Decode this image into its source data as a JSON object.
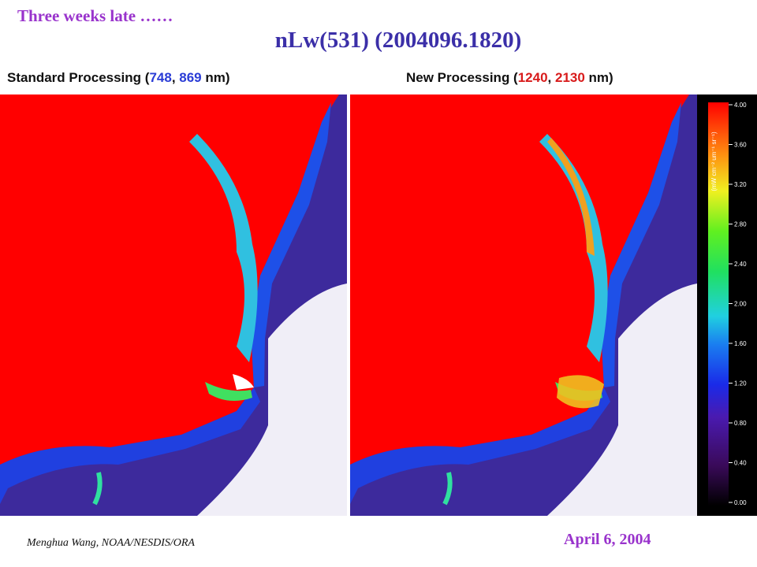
{
  "header": {
    "kicker": "Three weeks late ……",
    "title": "nLw(531) (2004096.1820)"
  },
  "panels": [
    {
      "label_parts": [
        "Standard Processing (",
        "748",
        ", ",
        "869",
        " nm)"
      ]
    },
    {
      "label_parts": [
        "New Processing (",
        "1240",
        ", ",
        "2130",
        " nm)"
      ]
    }
  ],
  "colorbar": {
    "unit": "(mW cm⁻² um⁻¹ sr⁻¹)",
    "ticks": [
      "4.00",
      "3.60",
      "3.20",
      "2.80",
      "2.40",
      "2.00",
      "1.60",
      "1.20",
      "0.80",
      "0.40",
      "0.00"
    ]
  },
  "footer": {
    "author": "Menghua Wang, NOAA/NESDIS/ORA",
    "date": "April 6, 2004"
  }
}
